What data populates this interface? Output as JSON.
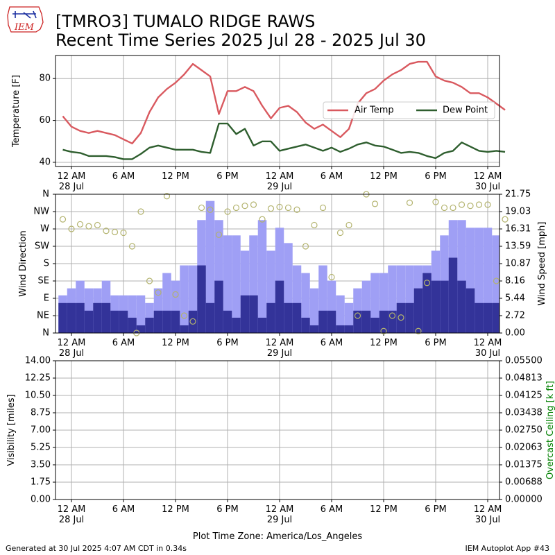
{
  "header": {
    "title_line1": "[TMRO3] TUMALO RIDGE RAWS",
    "title_line2": "Recent Time Series 2025 Jul 28 - 2025 Jul 30",
    "logo_text": "IEM"
  },
  "footer": {
    "generated": "Generated at 30 Jul 2025 4:07 AM CDT in 0.34s",
    "app": "IEM Autoplot App #43"
  },
  "colors": {
    "air_temp": "#d9595f",
    "dew_point": "#2e5e2e",
    "wind_speed": "#9f9ff5",
    "wind_gust_fill": "#333399",
    "wind_dir": "#b3b36e",
    "ceiling_label": "#008000"
  },
  "chart_data": [
    {
      "type": "line",
      "ylabel": "Temperature [F]",
      "ylim": [
        38,
        91
      ],
      "yticks": [
        "40",
        "60",
        "80"
      ],
      "grid": true,
      "legend_position": "center-right",
      "x_tick_labels": [
        [
          "12 AM",
          "28 Jul"
        ],
        [
          "6 AM",
          ""
        ],
        [
          "12 PM",
          ""
        ],
        [
          "6 PM",
          ""
        ],
        [
          "12 AM",
          "29 Jul"
        ],
        [
          "6 AM",
          ""
        ],
        [
          "12 PM",
          ""
        ],
        [
          "6 PM",
          ""
        ],
        [
          "12 AM",
          "30 Jul"
        ]
      ],
      "x_hours_since_jul28_0000": [
        -1,
        0,
        1,
        2,
        3,
        4,
        5,
        6,
        7,
        8,
        9,
        10,
        11,
        12,
        13,
        14,
        15,
        16,
        17,
        18,
        19,
        20,
        21,
        22,
        23,
        24,
        25,
        26,
        27,
        28,
        29,
        30,
        31,
        32,
        33,
        34,
        35,
        36,
        37,
        38,
        39,
        40,
        41,
        42,
        43,
        44,
        45,
        46,
        47,
        48,
        49,
        50
      ],
      "series": [
        {
          "name": "Air Temp",
          "values": [
            62,
            57,
            55,
            54,
            55,
            54,
            53,
            51,
            49,
            54,
            64,
            71,
            75,
            78,
            82,
            87,
            84,
            81,
            63,
            74,
            74,
            76,
            74,
            67,
            61,
            66,
            67,
            64,
            59,
            56,
            58,
            55,
            52,
            56,
            68,
            73,
            75,
            79,
            82,
            84,
            87,
            88,
            88,
            81,
            79,
            78,
            76,
            73,
            73,
            71,
            68,
            65
          ]
        },
        {
          "name": "Dew Point",
          "values": [
            46,
            45,
            44.5,
            43,
            43,
            43,
            42.5,
            41.5,
            41.5,
            44,
            47,
            48,
            47,
            46,
            46,
            46,
            45,
            44.5,
            58.5,
            58.5,
            53.5,
            56,
            48,
            50,
            50,
            45.5,
            46.5,
            47.5,
            48.5,
            47,
            45.5,
            47,
            45,
            46.5,
            48.5,
            49.5,
            48,
            47.5,
            46,
            44.5,
            45,
            44.5,
            43,
            42,
            44.5,
            45.5,
            49.5,
            47.5,
            45.5,
            45,
            45.5,
            45
          ]
        }
      ]
    },
    {
      "type": "bar",
      "ylabel": "Wind Direction",
      "y2label": "Wind Speed [mph]",
      "direction_ticks": [
        "N",
        "NE",
        "E",
        "SE",
        "S",
        "SW",
        "W",
        "NW",
        "N"
      ],
      "speed_ticks": [
        "0.00",
        "2.72",
        "5.44",
        "8.16",
        "10.87",
        "13.59",
        "16.31",
        "19.03",
        "21.75"
      ],
      "ylim_speed": [
        0,
        21.75
      ],
      "ylim_direction": [
        0,
        360
      ],
      "grid": true,
      "x_tick_labels": [
        [
          "12 AM",
          "28 Jul"
        ],
        [
          "6 AM",
          ""
        ],
        [
          "12 PM",
          ""
        ],
        [
          "6 PM",
          ""
        ],
        [
          "12 AM",
          "29 Jul"
        ],
        [
          "6 AM",
          ""
        ],
        [
          "12 PM",
          ""
        ],
        [
          "6 PM",
          ""
        ],
        [
          "12 AM",
          "30 Jul"
        ]
      ],
      "x_hours_since_jul28_0000": [
        -1,
        0,
        1,
        2,
        3,
        4,
        5,
        6,
        7,
        8,
        9,
        10,
        11,
        12,
        13,
        14,
        15,
        16,
        17,
        18,
        19,
        20,
        21,
        22,
        23,
        24,
        25,
        26,
        27,
        28,
        29,
        30,
        31,
        32,
        33,
        34,
        35,
        36,
        37,
        38,
        39,
        40,
        41,
        42,
        43,
        44,
        45,
        46,
        47,
        48,
        49,
        50
      ],
      "series": [
        {
          "name": "Wind Gust",
          "values": [
            5.9,
            7.0,
            8.2,
            7.0,
            7.0,
            8.2,
            5.9,
            5.9,
            5.9,
            5.9,
            4.7,
            7.0,
            9.4,
            8.2,
            10.6,
            10.6,
            17.7,
            20.7,
            17.7,
            15.3,
            15.3,
            12.9,
            15.3,
            17.7,
            12.9,
            16.5,
            14.1,
            10.6,
            9.4,
            7.0,
            10.6,
            8.2,
            5.9,
            4.7,
            7.0,
            8.2,
            9.4,
            9.4,
            10.6,
            10.6,
            10.6,
            10.6,
            10.6,
            12.9,
            15.3,
            17.7,
            17.7,
            16.5,
            16.5,
            16.5,
            15.3,
            11.8
          ]
        },
        {
          "name": "Wind Speed",
          "values": [
            4.7,
            4.7,
            4.7,
            3.5,
            4.7,
            4.7,
            3.5,
            3.5,
            2.4,
            1.2,
            2.4,
            3.5,
            3.5,
            3.5,
            1.2,
            3.5,
            10.6,
            4.7,
            8.2,
            3.5,
            2.4,
            5.9,
            5.9,
            2.4,
            4.7,
            8.2,
            4.7,
            4.7,
            2.4,
            1.2,
            3.5,
            3.5,
            1.2,
            1.2,
            3.5,
            3.5,
            2.4,
            3.5,
            3.5,
            4.7,
            4.7,
            7.0,
            9.4,
            8.2,
            8.2,
            11.8,
            8.2,
            7.0,
            4.7,
            4.7,
            4.7,
            3.5
          ]
        },
        {
          "name": "Wind Direction",
          "points": [
            [
              -1,
              295
            ],
            [
              0,
              270
            ],
            [
              1,
              282
            ],
            [
              2,
              277
            ],
            [
              3,
              280
            ],
            [
              4,
              265
            ],
            [
              5,
              262
            ],
            [
              6,
              260
            ],
            [
              7,
              225
            ],
            [
              7.5,
              0
            ],
            [
              8,
              315
            ],
            [
              9,
              135
            ],
            [
              10,
              105
            ],
            [
              11,
              355
            ],
            [
              12,
              100
            ],
            [
              13,
              45
            ],
            [
              14,
              30
            ],
            [
              15,
              325
            ],
            [
              16,
              320
            ],
            [
              17,
              255
            ],
            [
              18,
              315
            ],
            [
              19,
              325
            ],
            [
              20,
              330
            ],
            [
              21,
              333
            ],
            [
              22,
              295
            ],
            [
              23,
              323
            ],
            [
              24,
              327
            ],
            [
              25,
              325
            ],
            [
              26,
              320
            ],
            [
              27,
              225
            ],
            [
              28,
              280
            ],
            [
              29,
              325
            ],
            [
              30,
              145
            ],
            [
              31,
              260
            ],
            [
              32,
              280
            ],
            [
              33,
              45
            ],
            [
              34,
              360
            ],
            [
              35,
              335
            ],
            [
              36,
              5
            ],
            [
              37,
              45
            ],
            [
              38,
              40
            ],
            [
              39,
              338
            ],
            [
              40,
              5
            ],
            [
              41,
              130
            ],
            [
              42,
              340
            ],
            [
              43,
              325
            ],
            [
              44,
              325
            ],
            [
              45,
              333
            ],
            [
              46,
              330
            ],
            [
              47,
              333
            ],
            [
              48,
              333
            ],
            [
              49,
              135
            ],
            [
              50,
              295
            ]
          ]
        }
      ]
    },
    {
      "type": "line",
      "ylabel": "Visibility [miles]",
      "y2label": "Overcast Ceiling [k ft]",
      "ylim": [
        0,
        14
      ],
      "yticks": [
        "0.00",
        "1.75",
        "3.50",
        "5.25",
        "7.00",
        "8.75",
        "10.50",
        "12.25",
        "14.00"
      ],
      "y2ticks": [
        "0.00000",
        "0.00688",
        "0.01375",
        "0.02063",
        "0.02750",
        "0.03438",
        "0.04125",
        "0.04813",
        "0.05500"
      ],
      "grid": true,
      "xlabel": "Plot Time Zone: America/Los_Angeles",
      "x_tick_labels": [
        [
          "12 AM",
          "28 Jul"
        ],
        [
          "6 AM",
          ""
        ],
        [
          "12 PM",
          ""
        ],
        [
          "6 PM",
          ""
        ],
        [
          "12 AM",
          "29 Jul"
        ],
        [
          "6 AM",
          ""
        ],
        [
          "12 PM",
          ""
        ],
        [
          "6 PM",
          ""
        ],
        [
          "12 AM",
          "30 Jul"
        ]
      ],
      "series": []
    }
  ]
}
